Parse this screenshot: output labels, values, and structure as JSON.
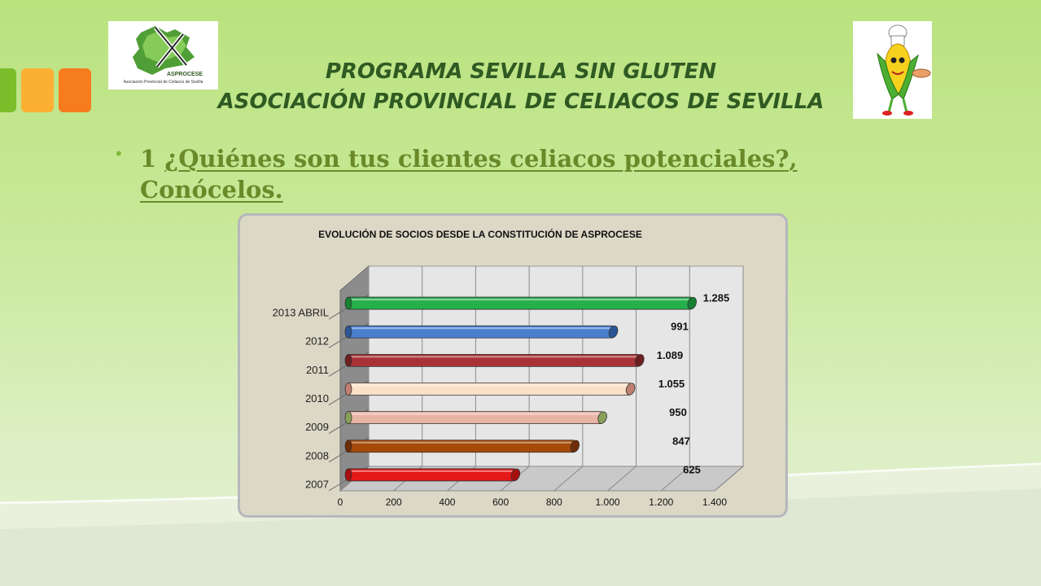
{
  "header": {
    "title_line1": "PROGRAMA SEVILLA SIN GLUTEN",
    "title_line2": "ASOCIACIÓN PROVINCIAL DE CELIACOS DE SEVILLA"
  },
  "logo_left": {
    "name": "ASPROCESE",
    "subtitle": "Asociación Provincial de Celiacos de Sevilla"
  },
  "bullet": {
    "number": "1",
    "text_line1": "¿Quiénes son tus clientes celiacos potenciales?,",
    "text_line2": "Conócelos."
  },
  "colors": {
    "title": "#2f5a22",
    "heading": "#6a8a2a",
    "square_green": "#7bbd2a",
    "square_yellow": "#fbb033",
    "square_orange": "#f77c1e"
  },
  "chart_data": {
    "type": "bar",
    "orientation": "horizontal",
    "title": "EVOLUCIÓN DE SOCIOS DESDE LA CONSTITUCIÓN DE ASPROCESE",
    "categories": [
      "2007",
      "2008",
      "2009",
      "2010",
      "2011",
      "2012",
      "2013 ABRIL"
    ],
    "values": [
      625,
      847,
      950,
      1055,
      1089,
      991,
      1285
    ],
    "value_labels": [
      "625",
      "847",
      "950",
      "1.055",
      "1.089",
      "991",
      "1.285"
    ],
    "bar_colors": [
      "#e51919",
      "#a64a0a",
      "#e8b4a4",
      "#fbe0c8",
      "#a83238",
      "#4a7fcf",
      "#25b04a"
    ],
    "cap_colors": [
      "#a80f0f",
      "#6e2d06",
      "#8aa05a",
      "#c08070",
      "#6f1e22",
      "#2c5596",
      "#178032"
    ],
    "xlim": [
      0,
      1400
    ],
    "xticks": [
      "0",
      "200",
      "400",
      "600",
      "800",
      "1.000",
      "1.200",
      "1.400"
    ],
    "grid": true,
    "legend": "none"
  }
}
